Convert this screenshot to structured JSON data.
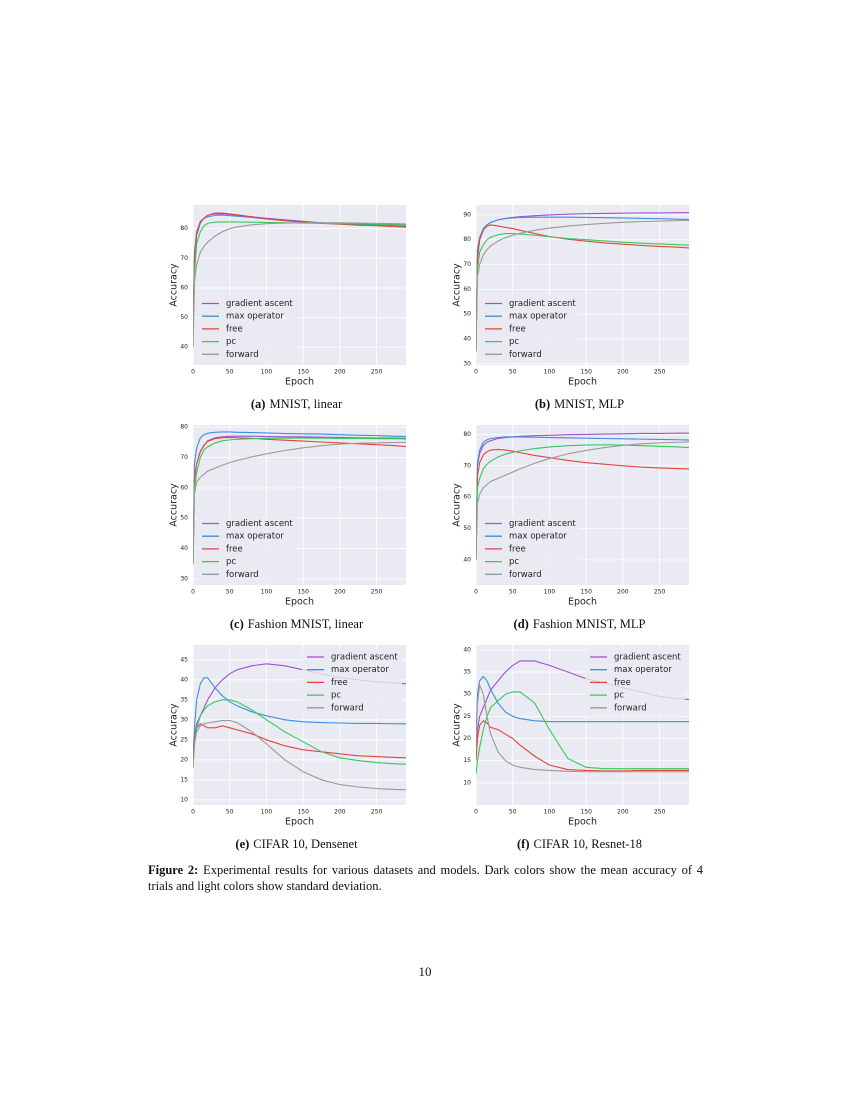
{
  "chart_data": [
    {
      "type": "line",
      "label": "(a)",
      "title": "MNIST, linear",
      "xlabel": "Epoch",
      "ylabel": "Accuracy",
      "x": [
        0,
        2,
        5,
        10,
        15,
        20,
        30,
        40,
        50,
        60,
        80,
        100,
        125,
        150,
        175,
        200,
        225,
        250,
        275,
        290
      ],
      "xlim": [
        0,
        290
      ],
      "xticks": [
        0,
        50,
        100,
        150,
        200,
        250
      ],
      "ylim": [
        34,
        88
      ],
      "yticks": [
        40,
        50,
        60,
        70,
        80
      ],
      "grid": true,
      "legend": "lower left",
      "series": [
        {
          "name": "gradient ascent",
          "color": "#a052d0",
          "values": [
            45,
            70,
            78,
            82,
            83.5,
            84.5,
            85,
            85,
            84.8,
            84.5,
            84,
            83.5,
            83,
            82.5,
            82,
            81.7,
            81.4,
            81.2,
            81,
            80.8
          ]
        },
        {
          "name": "max operator",
          "color": "#3d8fe0",
          "values": [
            45,
            72,
            79,
            82.5,
            83.5,
            84,
            84.5,
            84.6,
            84.4,
            84.2,
            83.8,
            83.3,
            82.8,
            82.3,
            82,
            81.7,
            81.4,
            81.2,
            81,
            80.9
          ]
        },
        {
          "name": "free",
          "color": "#e5433d",
          "values": [
            45,
            70,
            78,
            82,
            83.5,
            84.5,
            85.3,
            85.3,
            85,
            84.7,
            84,
            83.3,
            82.7,
            82.2,
            81.8,
            81.5,
            81.2,
            81,
            80.7,
            80.5
          ]
        },
        {
          "name": "pc",
          "color": "#35c85a",
          "values": [
            40,
            65,
            75,
            79,
            81,
            81.8,
            82.2,
            82.3,
            82.3,
            82.3,
            82.2,
            82.1,
            82,
            81.9,
            81.8,
            81.7,
            81.6,
            81.5,
            81.4,
            81.3
          ]
        },
        {
          "name": "forward",
          "color": "#9a9a9a",
          "values": [
            40,
            62,
            68,
            72,
            74,
            75.5,
            77.5,
            79,
            80,
            80.6,
            81.3,
            81.7,
            81.9,
            82,
            82,
            82,
            81.9,
            81.8,
            81.7,
            81.6
          ]
        }
      ]
    },
    {
      "type": "line",
      "label": "(b)",
      "title": "MNIST, MLP",
      "xlabel": "Epoch",
      "ylabel": "Accuracy",
      "x": [
        0,
        2,
        5,
        10,
        15,
        20,
        30,
        40,
        50,
        60,
        80,
        100,
        125,
        150,
        175,
        200,
        225,
        250,
        275,
        290
      ],
      "xlim": [
        0,
        290
      ],
      "xticks": [
        0,
        50,
        100,
        150,
        200,
        250
      ],
      "ylim": [
        29.5,
        94
      ],
      "yticks": [
        30,
        40,
        50,
        60,
        70,
        80,
        90
      ],
      "grid": true,
      "legend": "lower left",
      "series": [
        {
          "name": "gradient ascent",
          "color": "#a052d0",
          "values": [
            35,
            75,
            80,
            84,
            86,
            87,
            88,
            88.6,
            89,
            89.3,
            89.7,
            90,
            90.3,
            90.5,
            90.6,
            90.7,
            90.8,
            90.8,
            90.9,
            90.9
          ]
        },
        {
          "name": "max operator",
          "color": "#3d8fe0",
          "values": [
            35,
            76,
            81,
            84.5,
            86,
            87,
            88,
            88.5,
            88.8,
            89,
            89.1,
            89.1,
            89.1,
            89,
            88.9,
            88.8,
            88.6,
            88.5,
            88.3,
            88.2
          ]
        },
        {
          "name": "free",
          "color": "#e5433d",
          "values": [
            35,
            72,
            80,
            84,
            85.5,
            86,
            85.5,
            85,
            84.5,
            83.8,
            82.5,
            81.3,
            80.2,
            79.4,
            78.7,
            78.2,
            77.7,
            77.3,
            77,
            76.7
          ]
        },
        {
          "name": "pc",
          "color": "#35c85a",
          "values": [
            35,
            68,
            75,
            78,
            80,
            81,
            82,
            82.5,
            82.5,
            82.3,
            81.8,
            81.2,
            80.5,
            80,
            79.5,
            79,
            78.6,
            78.3,
            78,
            77.8
          ]
        },
        {
          "name": "forward",
          "color": "#9a9a9a",
          "values": [
            35,
            65,
            70,
            74,
            76,
            77.5,
            79.5,
            80.8,
            81.8,
            82.6,
            83.8,
            84.7,
            85.5,
            86.1,
            86.6,
            87,
            87.3,
            87.5,
            87.7,
            87.8
          ]
        }
      ]
    },
    {
      "type": "line",
      "label": "(c)",
      "title": "Fashion MNIST, linear",
      "xlabel": "Epoch",
      "ylabel": "Accuracy",
      "x": [
        0,
        2,
        5,
        10,
        15,
        20,
        30,
        40,
        50,
        60,
        80,
        100,
        125,
        150,
        175,
        200,
        225,
        250,
        275,
        290
      ],
      "xlim": [
        0,
        290
      ],
      "xticks": [
        0,
        50,
        100,
        150,
        200,
        250
      ],
      "ylim": [
        28,
        80.7
      ],
      "yticks": [
        30,
        40,
        50,
        60,
        70,
        80
      ],
      "grid": true,
      "legend": "lower left",
      "series": [
        {
          "name": "gradient ascent",
          "color": "#a052d0",
          "values": [
            35,
            63,
            68,
            72,
            74,
            75.5,
            76.5,
            76.8,
            77,
            77,
            77,
            76.9,
            76.8,
            76.8,
            76.7,
            76.6,
            76.5,
            76.4,
            76.4,
            76.3
          ]
        },
        {
          "name": "max operator",
          "color": "#3d8fe0",
          "values": [
            35,
            68,
            73,
            76.5,
            77.5,
            78,
            78.3,
            78.4,
            78.4,
            78.3,
            78.2,
            78.1,
            77.9,
            77.8,
            77.7,
            77.5,
            77.3,
            77.2,
            77,
            76.9
          ]
        },
        {
          "name": "free",
          "color": "#e5433d",
          "values": [
            35,
            63,
            68,
            72,
            74,
            75.3,
            76.2,
            76.5,
            76.6,
            76.5,
            76.3,
            76,
            75.7,
            75.4,
            75.1,
            74.8,
            74.5,
            74.2,
            73.9,
            73.6
          ]
        },
        {
          "name": "pc",
          "color": "#35c85a",
          "values": [
            35,
            60,
            65,
            70,
            72.5,
            73.5,
            74.8,
            75.5,
            75.8,
            76,
            76.2,
            76.3,
            76.4,
            76.4,
            76.4,
            76.3,
            76.3,
            76.2,
            76.2,
            76.1
          ]
        },
        {
          "name": "forward",
          "color": "#9a9a9a",
          "values": [
            35,
            58,
            62,
            63.5,
            64.5,
            65.5,
            66.5,
            67.5,
            68.3,
            69,
            70.2,
            71.2,
            72.3,
            73.2,
            73.9,
            74.4,
            74.7,
            74.8,
            74.9,
            75
          ]
        }
      ]
    },
    {
      "type": "line",
      "label": "(d)",
      "title": "Fashion MNIST, MLP",
      "xlabel": "Epoch",
      "ylabel": "Accuracy",
      "x": [
        0,
        2,
        5,
        10,
        15,
        20,
        30,
        40,
        50,
        60,
        80,
        100,
        125,
        150,
        175,
        200,
        225,
        250,
        275,
        290
      ],
      "xlim": [
        0,
        290
      ],
      "xticks": [
        0,
        50,
        100,
        150,
        200,
        250
      ],
      "ylim": [
        32,
        83
      ],
      "yticks": [
        40,
        50,
        60,
        70,
        80
      ],
      "grid": true,
      "legend": "lower left",
      "series": [
        {
          "name": "gradient ascent",
          "color": "#a052d0",
          "values": [
            40,
            70,
            74,
            76.5,
            77.5,
            78,
            78.7,
            79,
            79.2,
            79.4,
            79.6,
            79.7,
            79.9,
            80,
            80.1,
            80.2,
            80.3,
            80.3,
            80.4,
            80.4
          ]
        },
        {
          "name": "max operator",
          "color": "#3d8fe0",
          "values": [
            40,
            71,
            75,
            77.5,
            78.3,
            78.7,
            79,
            79.2,
            79.2,
            79.2,
            79.1,
            79,
            78.9,
            78.8,
            78.7,
            78.6,
            78.5,
            78.4,
            78.3,
            78.2
          ]
        },
        {
          "name": "free",
          "color": "#e5433d",
          "values": [
            40,
            67,
            71,
            73.5,
            74.5,
            75,
            75.2,
            75,
            74.7,
            74.2,
            73.3,
            72.6,
            71.7,
            71,
            70.5,
            70,
            69.6,
            69.3,
            69.1,
            69
          ]
        },
        {
          "name": "pc",
          "color": "#35c85a",
          "values": [
            40,
            63,
            66,
            69,
            70.5,
            71.5,
            72.8,
            73.7,
            74.3,
            74.8,
            75.5,
            76,
            76.4,
            76.6,
            76.7,
            76.6,
            76.4,
            76.2,
            76,
            75.8
          ]
        },
        {
          "name": "forward",
          "color": "#9a9a9a",
          "values": [
            40,
            58,
            61,
            63,
            64,
            65,
            66,
            67,
            68,
            69,
            70.8,
            72.3,
            73.8,
            74.9,
            75.8,
            76.5,
            77,
            77.3,
            77.5,
            77.6
          ]
        }
      ]
    },
    {
      "type": "line",
      "label": "(e)",
      "title": "CIFAR 10, Densenet",
      "xlabel": "Epoch",
      "ylabel": "Accuracy",
      "x": [
        0,
        2,
        5,
        10,
        15,
        20,
        30,
        40,
        50,
        60,
        80,
        100,
        125,
        150,
        175,
        200,
        225,
        250,
        275,
        290
      ],
      "xlim": [
        0,
        290
      ],
      "xticks": [
        0,
        50,
        100,
        150,
        200,
        250
      ],
      "ylim": [
        8.7,
        48.7
      ],
      "yticks": [
        10,
        15,
        20,
        25,
        30,
        35,
        40,
        45
      ],
      "grid": true,
      "legend": "upper right",
      "series": [
        {
          "name": "gradient ascent",
          "color": "#a052d0",
          "values": [
            22,
            26,
            29,
            31,
            33,
            35,
            38,
            40,
            41.5,
            42.5,
            43.5,
            44,
            43.5,
            42.5,
            41.5,
            40.5,
            40,
            39.5,
            39.2,
            39
          ]
        },
        {
          "name": "max operator",
          "color": "#3d8fe0",
          "values": [
            20,
            28,
            35,
            39,
            40.5,
            40.5,
            38,
            36,
            34.5,
            33.5,
            32,
            31,
            30,
            29.5,
            29.3,
            29.2,
            29.1,
            29.1,
            29,
            29
          ]
        },
        {
          "name": "free",
          "color": "#e5433d",
          "values": [
            20,
            25,
            28,
            29,
            28.5,
            28,
            28,
            28.5,
            28,
            27.5,
            26.5,
            25,
            23.5,
            22.5,
            22,
            21.5,
            21,
            20.8,
            20.6,
            20.5
          ]
        },
        {
          "name": "pc",
          "color": "#35c85a",
          "values": [
            18,
            24,
            28,
            31,
            32.5,
            33.5,
            34.5,
            35,
            35,
            34.5,
            32.5,
            30,
            27,
            24.5,
            22,
            20.5,
            19.8,
            19.3,
            19,
            18.9
          ]
        },
        {
          "name": "forward",
          "color": "#9a9a9a",
          "values": [
            18,
            24,
            27,
            28.5,
            29,
            29.2,
            29.5,
            29.8,
            29.8,
            29.3,
            27,
            24,
            20,
            17,
            15,
            13.8,
            13.2,
            12.8,
            12.6,
            12.5
          ]
        }
      ]
    },
    {
      "type": "line",
      "label": "(f)",
      "title": "CIFAR 10, Resnet-18",
      "xlabel": "Epoch",
      "ylabel": "Accuracy",
      "x": [
        0,
        2,
        5,
        10,
        15,
        20,
        30,
        40,
        50,
        60,
        80,
        100,
        125,
        150,
        175,
        200,
        225,
        250,
        275,
        290
      ],
      "xlim": [
        0,
        290
      ],
      "xticks": [
        0,
        50,
        100,
        150,
        200,
        250
      ],
      "ylim": [
        5,
        41.1
      ],
      "yticks": [
        10,
        15,
        20,
        25,
        30,
        35,
        40
      ],
      "grid": true,
      "legend": "upper right",
      "series": [
        {
          "name": "gradient ascent",
          "color": "#a052d0",
          "values": [
            18,
            22,
            25,
            27,
            29,
            31,
            33,
            35,
            36.5,
            37.5,
            37.5,
            36.5,
            35,
            33.5,
            32.5,
            31.5,
            30.5,
            29.5,
            29,
            28.8
          ]
        },
        {
          "name": "max operator",
          "color": "#3d8fe0",
          "values": [
            20,
            30,
            33,
            34,
            33,
            31,
            28,
            26,
            25,
            24.5,
            24,
            23.8,
            23.8,
            23.8,
            23.8,
            23.8,
            23.8,
            23.8,
            23.8,
            23.8
          ]
        },
        {
          "name": "free",
          "color": "#e5433d",
          "values": [
            15,
            20,
            23,
            24,
            23.5,
            22.5,
            22,
            21,
            20,
            18.5,
            16,
            14,
            13,
            12.8,
            12.7,
            12.7,
            12.8,
            12.8,
            12.8,
            12.8
          ]
        },
        {
          "name": "pc",
          "color": "#35c85a",
          "values": [
            12,
            15,
            18,
            22,
            25,
            27,
            28.5,
            30,
            30.5,
            30.5,
            28,
            22,
            15.5,
            13.5,
            13.2,
            13.2,
            13.2,
            13.2,
            13.2,
            13.2
          ]
        },
        {
          "name": "forward",
          "color": "#9a9a9a",
          "values": [
            18,
            28,
            32,
            30,
            25,
            21,
            17,
            15,
            14,
            13.5,
            13,
            12.8,
            12.6,
            12.5,
            12.5,
            12.5,
            12.5,
            12.5,
            12.5,
            12.5
          ]
        }
      ]
    }
  ],
  "figure_caption": {
    "label": "Figure 2:",
    "text": "Experimental results for various datasets and models. Dark colors show the mean accuracy of 4 trials and light colors show standard deviation."
  },
  "page_number": "10"
}
